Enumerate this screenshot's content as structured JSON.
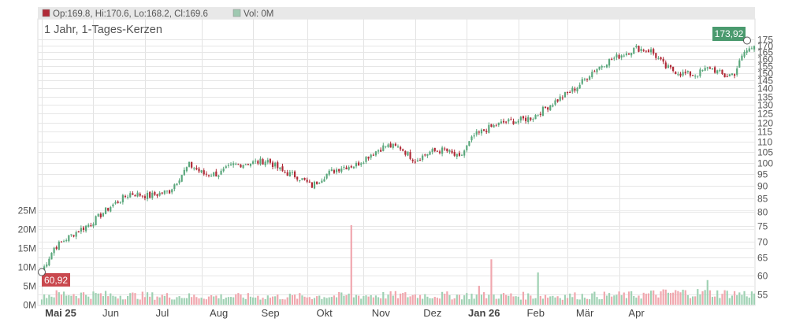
{
  "legend": {
    "ohlc": "Op:169.8, Hi:170.6, Lo:168.2, Cl:169.6",
    "vol": "Vol: 0M",
    "up_color": "#5aa77c",
    "down_color": "#b02a37"
  },
  "title": "1 Jahr, 1-Tages-Kerzen",
  "badges": {
    "high": "173,92",
    "low": "60,92",
    "high_color": "#4a9a6e",
    "low_color": "#c9484e"
  },
  "chart_data": {
    "type": "candlestick",
    "title": "1 Jahr, 1-Tages-Kerzen",
    "price_axis": {
      "ticks": [
        55,
        60,
        65,
        70,
        75,
        80,
        85,
        90,
        95,
        100,
        105,
        110,
        115,
        120,
        125,
        130,
        135,
        140,
        145,
        150,
        155,
        160,
        165,
        170,
        175
      ],
      "scale": "log",
      "range": [
        52,
        178
      ]
    },
    "volume_axis": {
      "ticks": [
        "0M",
        "5M",
        "10M",
        "15M",
        "20M",
        "25M"
      ],
      "values": [
        0,
        5,
        10,
        15,
        20,
        25
      ],
      "range": [
        0,
        26
      ]
    },
    "x_labels": [
      {
        "label": "Mai 25",
        "bold": true
      },
      {
        "label": "Jun",
        "bold": false
      },
      {
        "label": "Jul",
        "bold": false
      },
      {
        "label": "Aug",
        "bold": false
      },
      {
        "label": "Sep",
        "bold": false
      },
      {
        "label": "Okt",
        "bold": false
      },
      {
        "label": "Nov",
        "bold": false
      },
      {
        "label": "Dez",
        "bold": false
      },
      {
        "label": "Jan 26",
        "bold": true
      },
      {
        "label": "Feb",
        "bold": false
      },
      {
        "label": "Mär",
        "bold": false
      },
      {
        "label": "Apr",
        "bold": false
      }
    ],
    "range_high": 173.92,
    "range_low": 60.92,
    "price_anchors": [
      [
        0,
        61
      ],
      [
        5,
        68
      ],
      [
        12,
        72
      ],
      [
        20,
        76
      ],
      [
        28,
        82
      ],
      [
        36,
        87
      ],
      [
        44,
        86
      ],
      [
        52,
        88
      ],
      [
        60,
        99
      ],
      [
        66,
        95
      ],
      [
        72,
        95
      ],
      [
        78,
        99
      ],
      [
        86,
        100
      ],
      [
        92,
        101
      ],
      [
        98,
        96
      ],
      [
        104,
        94
      ],
      [
        110,
        90
      ],
      [
        116,
        95
      ],
      [
        122,
        98
      ],
      [
        128,
        99
      ],
      [
        134,
        104
      ],
      [
        140,
        108
      ],
      [
        146,
        107
      ],
      [
        152,
        101
      ],
      [
        158,
        105
      ],
      [
        164,
        106
      ],
      [
        170,
        102
      ],
      [
        176,
        113
      ],
      [
        182,
        117
      ],
      [
        188,
        120
      ],
      [
        194,
        121
      ],
      [
        200,
        123
      ],
      [
        206,
        129
      ],
      [
        212,
        135
      ],
      [
        218,
        141
      ],
      [
        224,
        151
      ],
      [
        230,
        158
      ],
      [
        236,
        163
      ],
      [
        242,
        168
      ],
      [
        248,
        166
      ],
      [
        254,
        154
      ],
      [
        260,
        150
      ],
      [
        266,
        149
      ],
      [
        272,
        154
      ],
      [
        278,
        148
      ],
      [
        282,
        150
      ],
      [
        286,
        165
      ],
      [
        290,
        169.6
      ]
    ],
    "volume_anchors": [
      [
        0,
        2.5
      ],
      [
        10,
        2.9
      ],
      [
        30,
        2.5
      ],
      [
        60,
        2.2
      ],
      [
        100,
        2.1
      ],
      [
        140,
        2.5
      ],
      [
        180,
        2.4
      ],
      [
        210,
        2.3
      ],
      [
        240,
        2.5
      ],
      [
        260,
        3.2
      ],
      [
        290,
        2.8
      ]
    ],
    "volume_spikes": [
      {
        "day": 126,
        "value": 21
      },
      {
        "day": 178,
        "value": 5
      },
      {
        "day": 183,
        "value": 12
      },
      {
        "day": 202,
        "value": 8.5
      },
      {
        "day": 271,
        "value": 6.5
      }
    ]
  }
}
